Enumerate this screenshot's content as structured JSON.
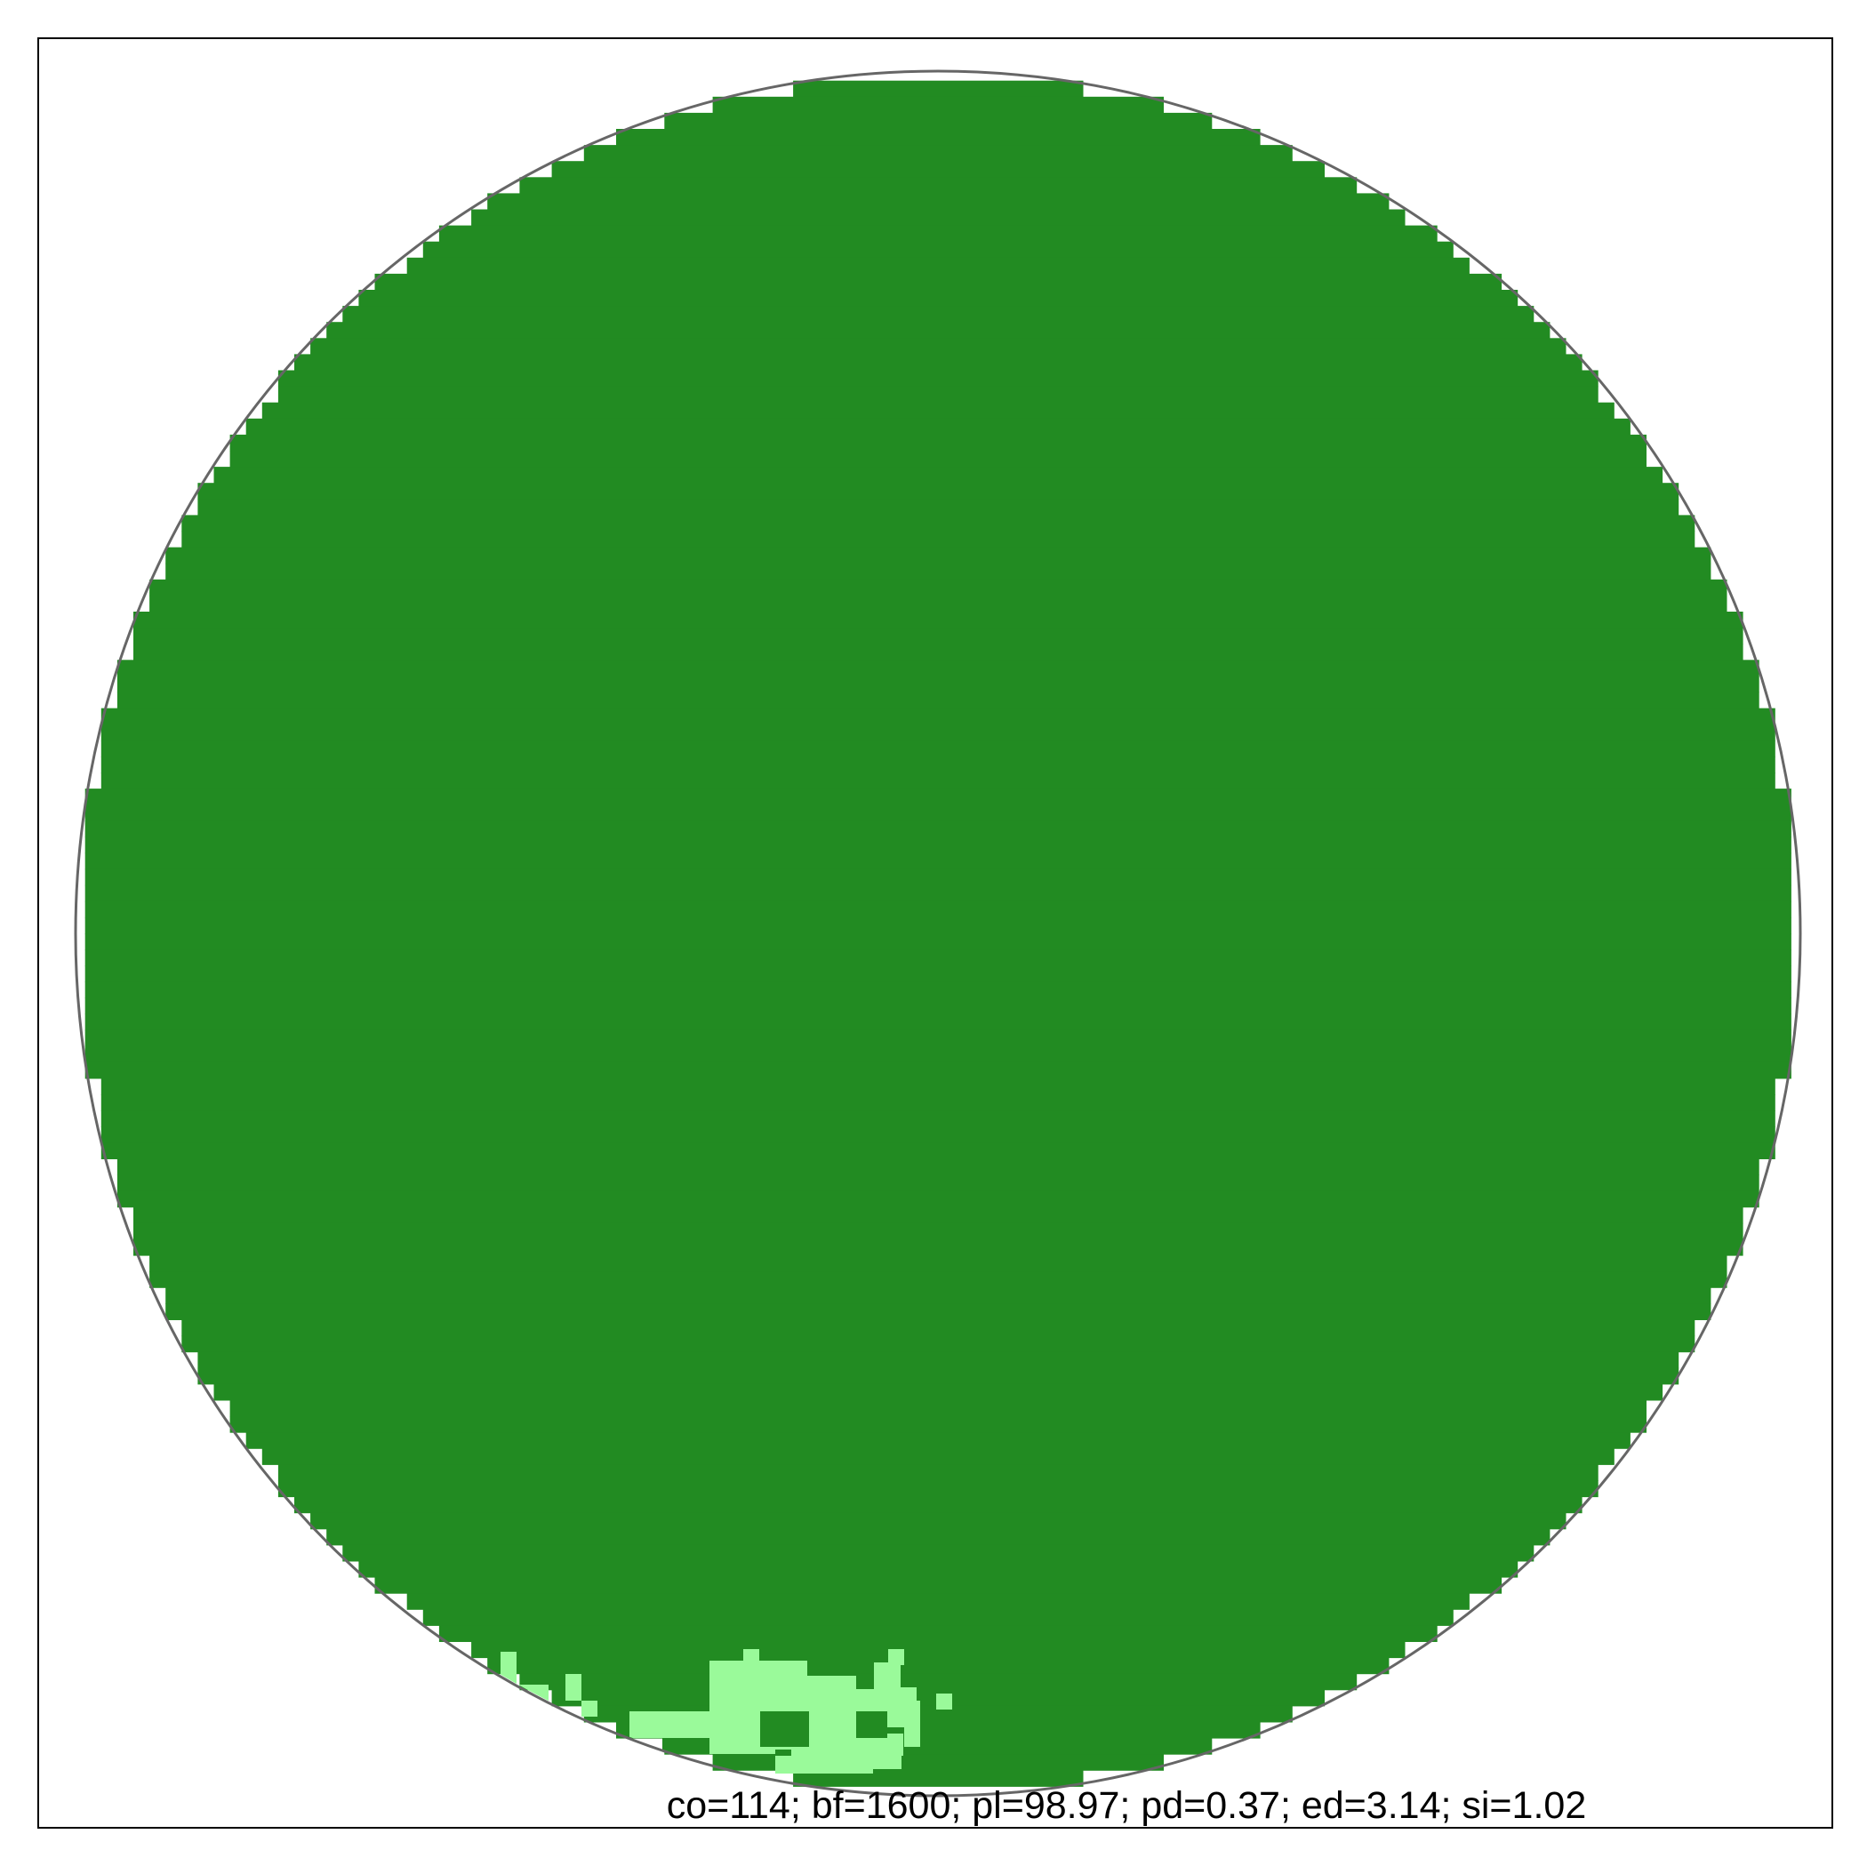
{
  "diagram": {
    "caption": "co=114; bf=1600; pl=98.97; pd=0.37; ed=3.14; si=1.02",
    "colors": {
      "frame": "#000000",
      "circle_outline": "#666666",
      "dark_green": "#228B22",
      "light_green": "#9AFA9A",
      "background": "#FFFFFF"
    }
  }
}
